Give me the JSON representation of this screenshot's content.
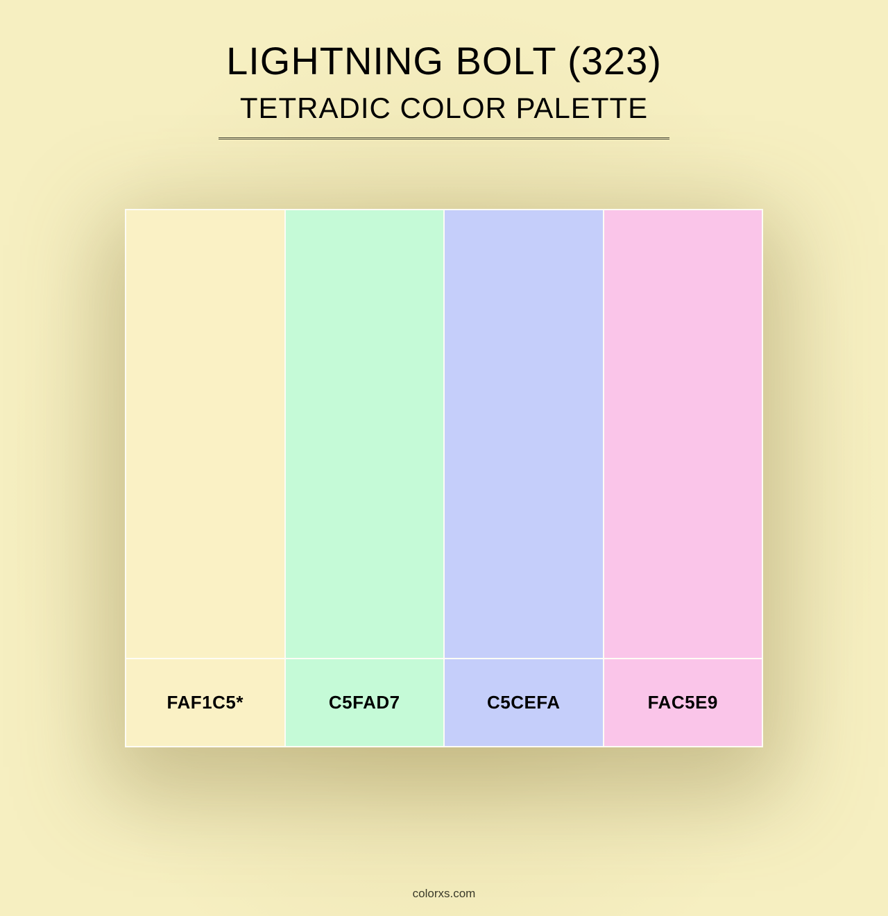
{
  "header": {
    "title": "LIGHTNING BOLT (323)",
    "subtitle": "TETRADIC COLOR PALETTE"
  },
  "palette": {
    "background_color": "#f6efc1",
    "vignette_color": "#d9cd95",
    "container_bg": "#fdfcf5",
    "text_color": "#000000",
    "divider_color": "#4a4a3a",
    "swatches": [
      {
        "hex": "FAF1C5*",
        "color": "#faf1c5"
      },
      {
        "hex": "C5FAD7",
        "color": "#c5fad7"
      },
      {
        "hex": "C5CEFA",
        "color": "#c5cefa"
      },
      {
        "hex": "FAC5E9",
        "color": "#fac5e9"
      }
    ],
    "swatch_height": 645,
    "label_height": 125,
    "container_width": 920,
    "title_fontsize": 56,
    "subtitle_fontsize": 42,
    "label_fontsize": 26
  },
  "footer": {
    "text": "colorxs.com"
  }
}
